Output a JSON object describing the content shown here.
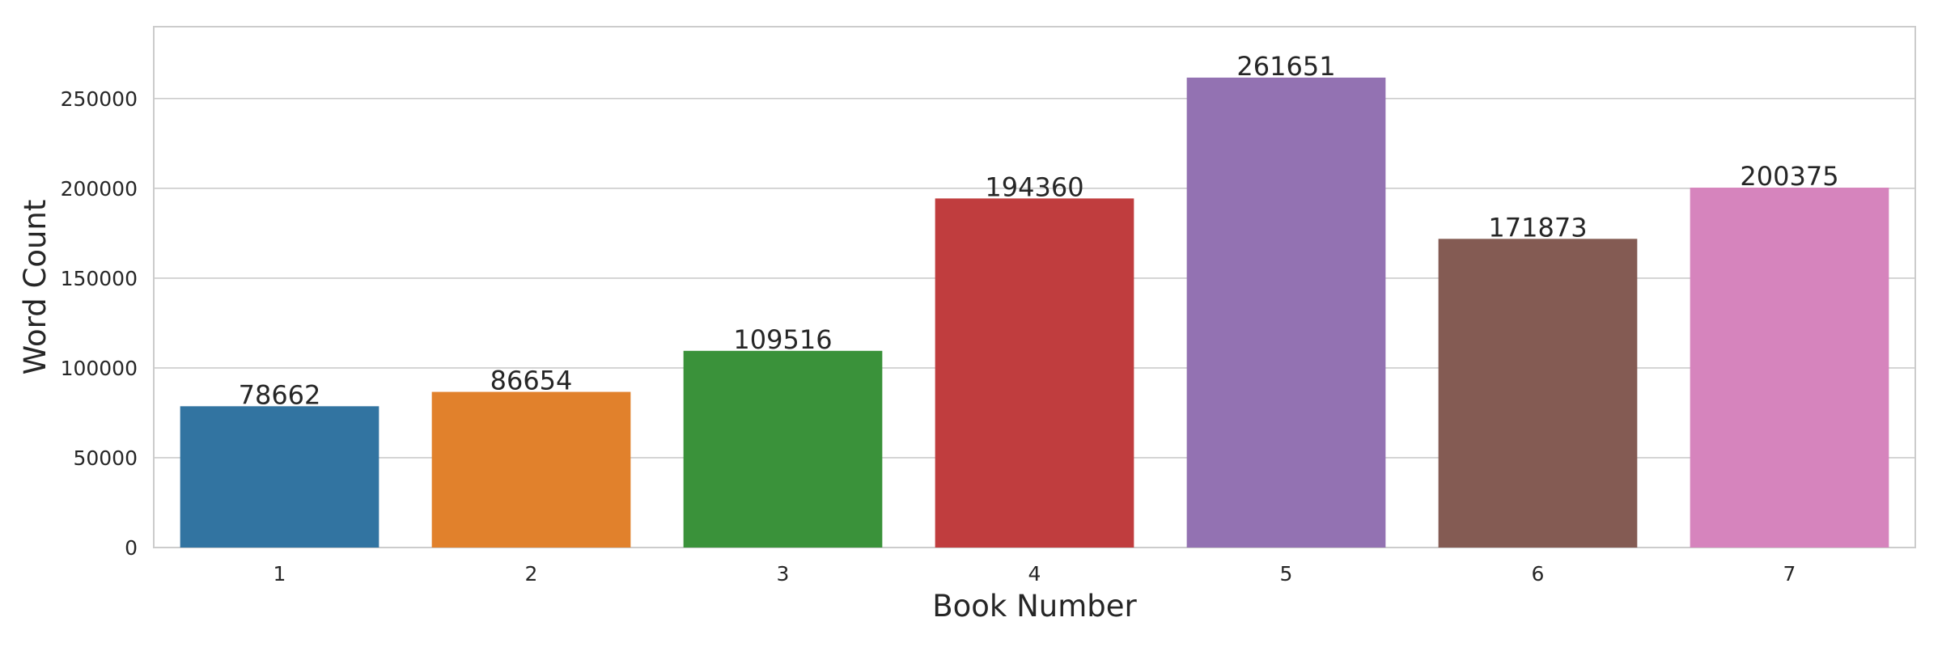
{
  "chart_data": {
    "type": "bar",
    "title": "",
    "xlabel": "Book Number",
    "ylabel": "Word Count",
    "categories": [
      "1",
      "2",
      "3",
      "4",
      "5",
      "6",
      "7"
    ],
    "values": [
      78662,
      86654,
      109516,
      194360,
      261651,
      171873,
      200375
    ],
    "data_labels": [
      "78662",
      "86654",
      "109516",
      "194360",
      "261651",
      "171873",
      "200375"
    ],
    "colors": [
      "#3274a1",
      "#e1812c",
      "#3a923a",
      "#c03d3e",
      "#9372b2",
      "#845b53",
      "#d684bd"
    ],
    "ylim": [
      0,
      290000
    ],
    "yticks": [
      0,
      50000,
      100000,
      150000,
      200000,
      250000
    ],
    "ytick_labels": [
      "0",
      "50000",
      "100000",
      "150000",
      "200000",
      "250000"
    ],
    "grid": true,
    "grid_axis": "y",
    "legend": false
  }
}
